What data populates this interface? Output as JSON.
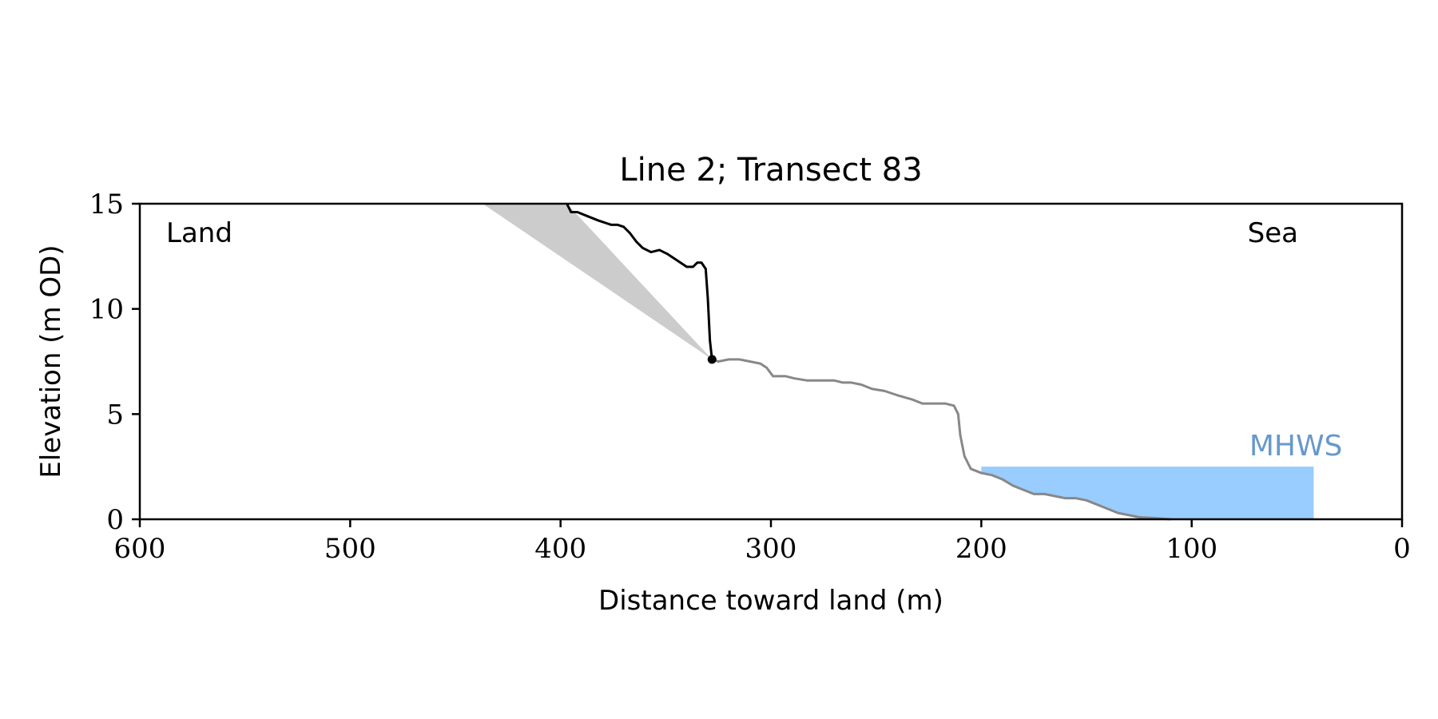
{
  "chart_data": {
    "type": "line",
    "title": "Line 2; Transect 83",
    "xlabel": "Distance toward land (m)",
    "ylabel": "Elevation (m OD)",
    "xlim": [
      600,
      0
    ],
    "ylim": [
      0,
      15
    ],
    "x_ticks": [
      600,
      500,
      400,
      300,
      200,
      100,
      0
    ],
    "y_ticks": [
      0,
      5,
      10,
      15
    ],
    "grid": false,
    "annotations": {
      "land": "Land",
      "sea": "Sea",
      "mhws": "MHWS"
    },
    "colors": {
      "cliff": "#000000",
      "profile": "#888888",
      "wedge": "#cccccc",
      "water": "#99ccff",
      "mhws_label": "#6699cc"
    },
    "mhws": {
      "elevation": 2.5,
      "x_from": 200,
      "x_to": 42
    },
    "cliff_toe": {
      "x": 328,
      "y": 7.6
    },
    "wedge": [
      [
        437,
        15
      ],
      [
        397,
        15
      ],
      [
        328,
        7.6
      ]
    ],
    "series": [
      {
        "role": "cliff",
        "points": [
          [
            397,
            15
          ],
          [
            395,
            14.6
          ],
          [
            392,
            14.6
          ],
          [
            387,
            14.4
          ],
          [
            382,
            14.2
          ],
          [
            376,
            14.0
          ],
          [
            373,
            14.0
          ],
          [
            370,
            13.9
          ],
          [
            367,
            13.6
          ],
          [
            364,
            13.2
          ],
          [
            361,
            12.9
          ],
          [
            357,
            12.7
          ],
          [
            353,
            12.8
          ],
          [
            349,
            12.6
          ],
          [
            346,
            12.4
          ],
          [
            343,
            12.2
          ],
          [
            340,
            12.0
          ],
          [
            337,
            12.0
          ],
          [
            335,
            12.2
          ],
          [
            333,
            12.2
          ],
          [
            331,
            11.9
          ],
          [
            330,
            10.5
          ],
          [
            329,
            8.5
          ],
          [
            328,
            7.6
          ]
        ]
      },
      {
        "role": "profile",
        "points": [
          [
            328,
            7.6
          ],
          [
            325,
            7.5
          ],
          [
            320,
            7.6
          ],
          [
            315,
            7.6
          ],
          [
            310,
            7.5
          ],
          [
            305,
            7.4
          ],
          [
            302,
            7.2
          ],
          [
            299,
            6.8
          ],
          [
            296,
            6.8
          ],
          [
            293,
            6.8
          ],
          [
            289,
            6.7
          ],
          [
            283,
            6.6
          ],
          [
            276,
            6.6
          ],
          [
            270,
            6.6
          ],
          [
            266,
            6.5
          ],
          [
            262,
            6.5
          ],
          [
            257,
            6.4
          ],
          [
            252,
            6.2
          ],
          [
            246,
            6.1
          ],
          [
            240,
            5.9
          ],
          [
            233,
            5.7
          ],
          [
            228,
            5.5
          ],
          [
            222,
            5.5
          ],
          [
            217,
            5.5
          ],
          [
            213,
            5.4
          ],
          [
            211,
            5.0
          ],
          [
            210,
            4.0
          ],
          [
            208,
            3.0
          ],
          [
            205,
            2.4
          ],
          [
            200,
            2.2
          ],
          [
            195,
            2.1
          ],
          [
            190,
            1.9
          ],
          [
            185,
            1.6
          ],
          [
            180,
            1.4
          ],
          [
            175,
            1.2
          ],
          [
            170,
            1.2
          ],
          [
            165,
            1.1
          ],
          [
            160,
            1.0
          ],
          [
            155,
            1.0
          ],
          [
            150,
            0.9
          ],
          [
            145,
            0.7
          ],
          [
            140,
            0.5
          ],
          [
            135,
            0.3
          ],
          [
            130,
            0.2
          ],
          [
            125,
            0.1
          ],
          [
            117,
            0.05
          ],
          [
            110,
            0.0
          ]
        ]
      }
    ]
  }
}
